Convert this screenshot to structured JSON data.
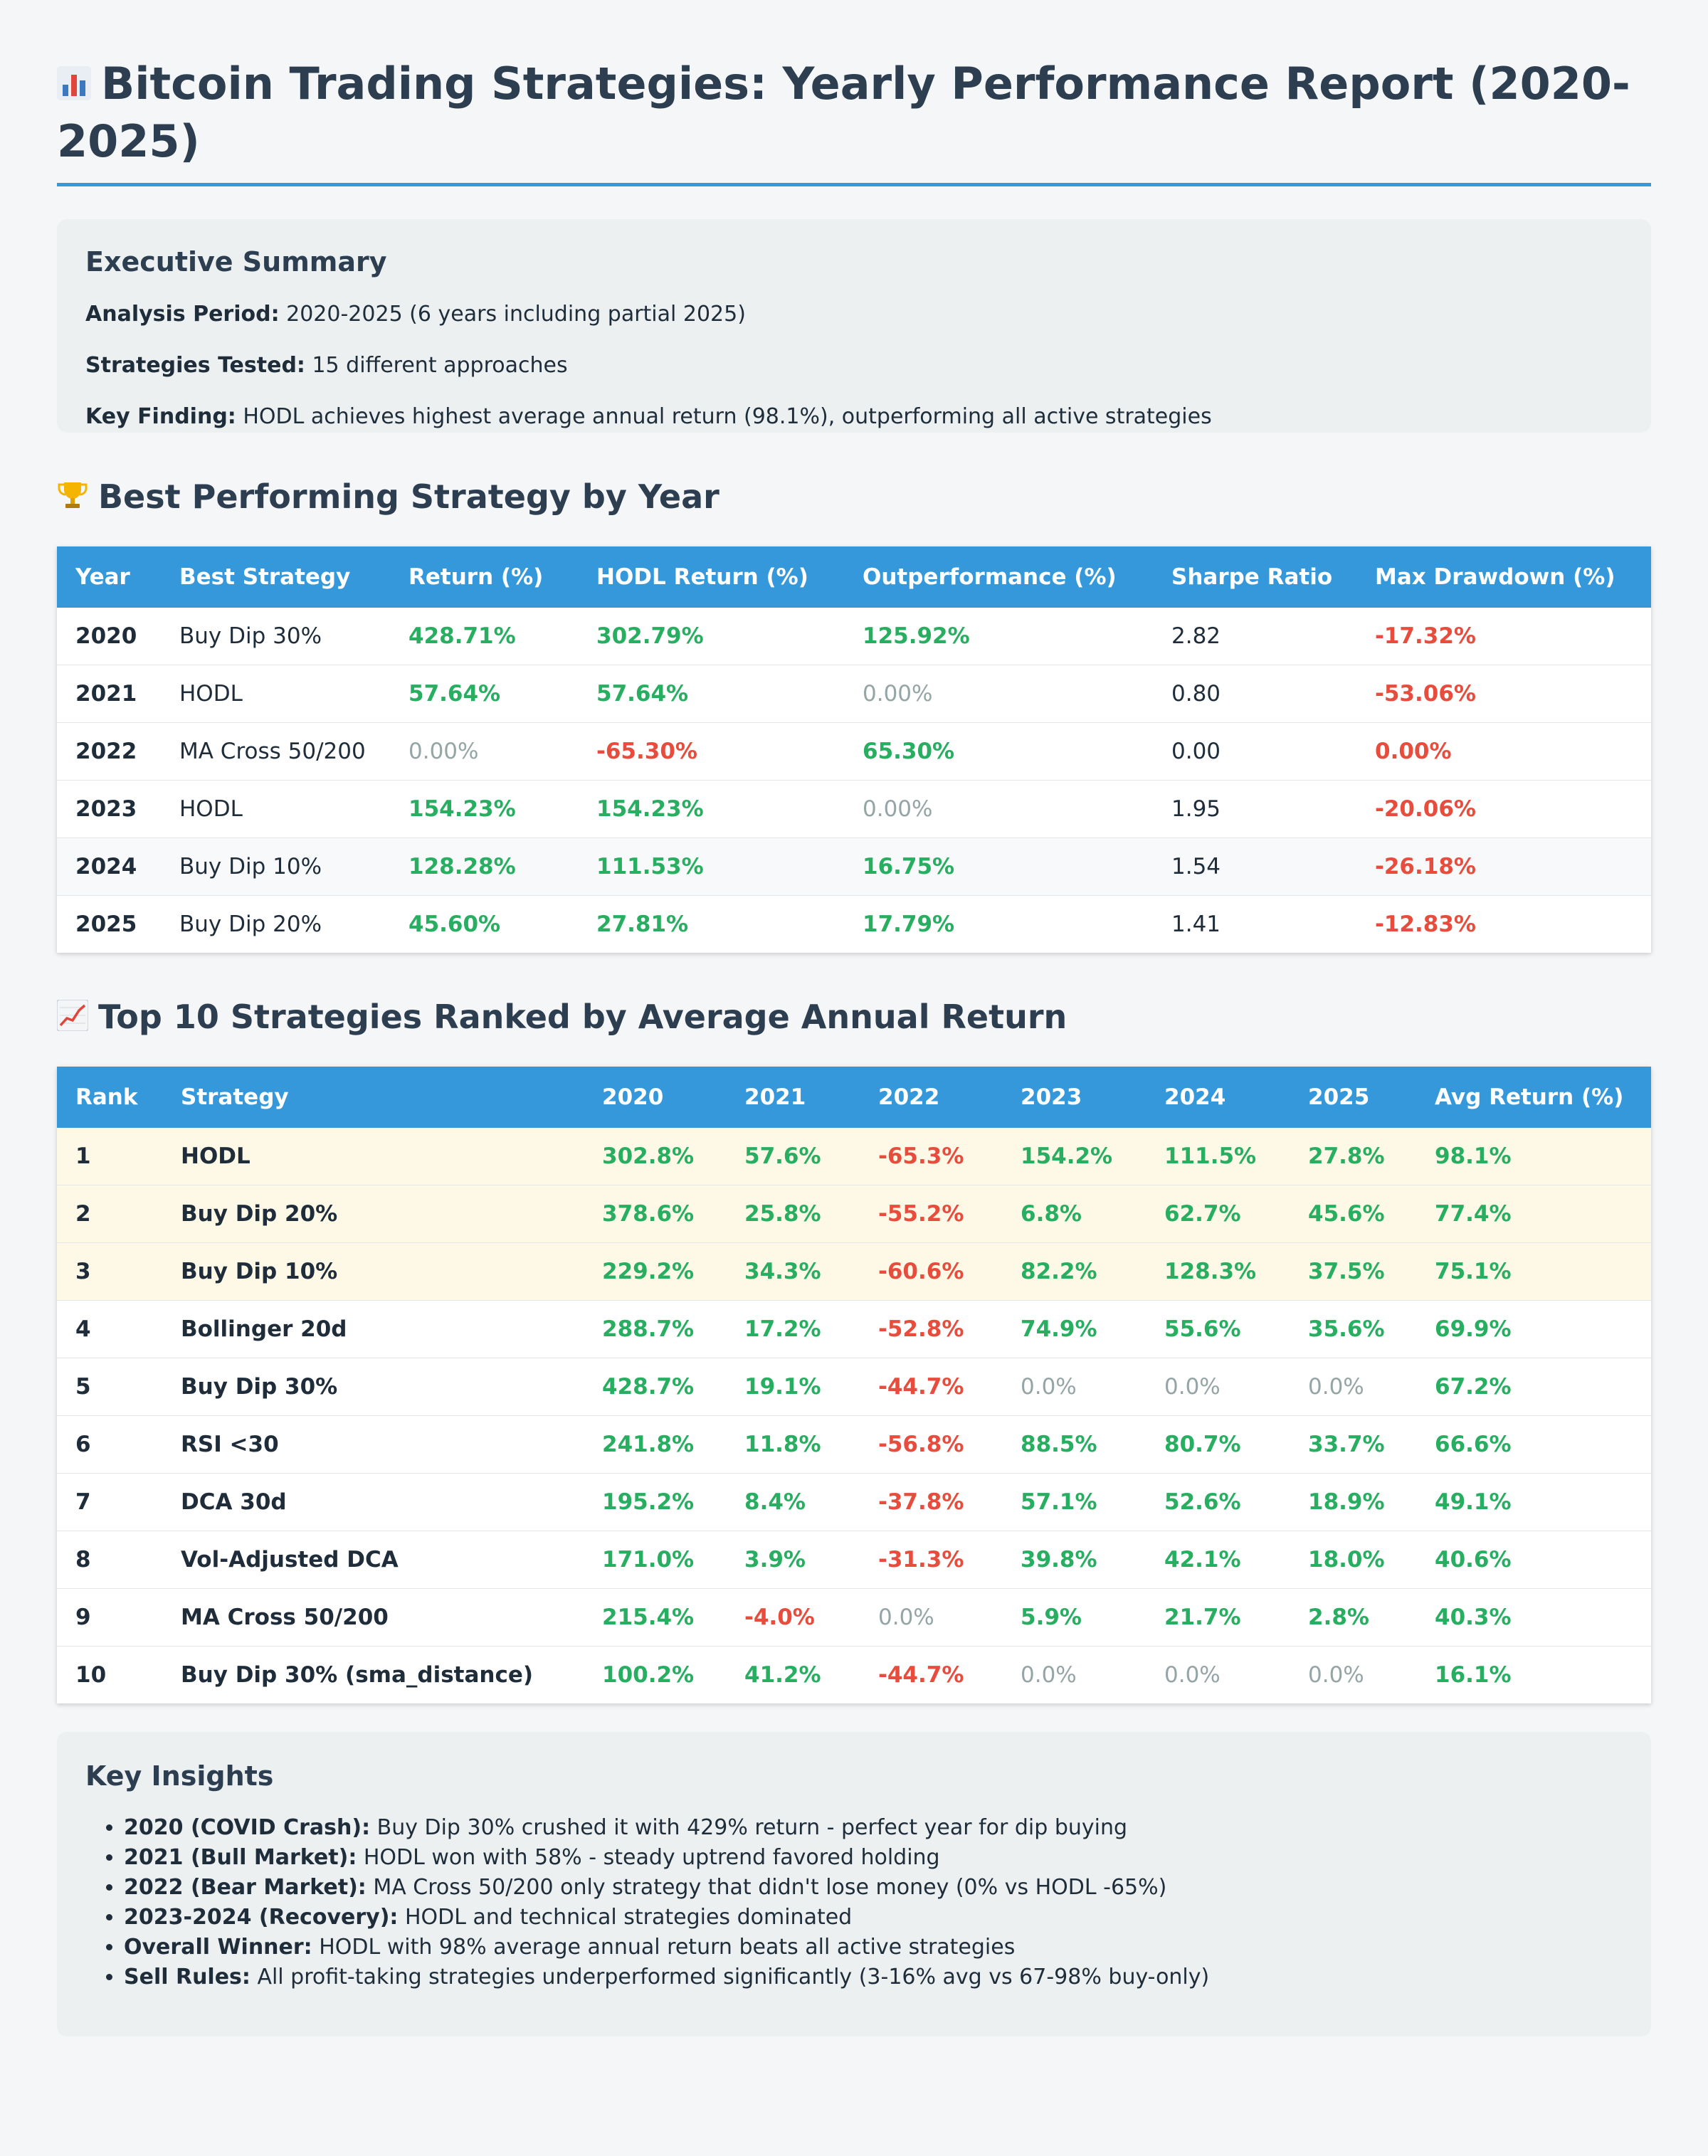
{
  "title": "Bitcoin Trading Strategies: Yearly Performance Report (2020-2025)",
  "summary": {
    "heading": "Executive Summary",
    "items": [
      {
        "label": "Analysis Period:",
        "text": " 2020-2025 (6 years including partial 2025)"
      },
      {
        "label": "Strategies Tested:",
        "text": " 15 different approaches"
      },
      {
        "label": "Key Finding:",
        "text": " HODL achieves highest average annual return (98.1%), outperforming all active strategies"
      }
    ]
  },
  "best_by_year": {
    "heading": "Best Performing Strategy by Year",
    "columns": [
      "Year",
      "Best Strategy",
      "Return (%)",
      "HODL Return (%)",
      "Outperformance (%)",
      "Sharpe Ratio",
      "Max Drawdown (%)"
    ],
    "rows": [
      [
        "2020",
        "Buy Dip 30%",
        "428.71%",
        "302.79%",
        "125.92%",
        "2.82",
        "-17.32%"
      ],
      [
        "2021",
        "HODL",
        "57.64%",
        "57.64%",
        "0.00%",
        "0.80",
        "-53.06%"
      ],
      [
        "2022",
        "MA Cross 50/200",
        "0.00%",
        "-65.30%",
        "65.30%",
        "0.00",
        "0.00%"
      ],
      [
        "2023",
        "HODL",
        "154.23%",
        "154.23%",
        "0.00%",
        "1.95",
        "-20.06%"
      ],
      [
        "2024",
        "Buy Dip 10%",
        "128.28%",
        "111.53%",
        "16.75%",
        "1.54",
        "-26.18%"
      ],
      [
        "2025",
        "Buy Dip 20%",
        "45.60%",
        "27.81%",
        "17.79%",
        "1.41",
        "-12.83%"
      ]
    ]
  },
  "top10": {
    "heading": "Top 10 Strategies Ranked by Average Annual Return",
    "columns": [
      "Rank",
      "Strategy",
      "2020",
      "2021",
      "2022",
      "2023",
      "2024",
      "2025",
      "Avg Return (%)"
    ],
    "rows": [
      [
        "1",
        "HODL",
        "302.8%",
        "57.6%",
        "-65.3%",
        "154.2%",
        "111.5%",
        "27.8%",
        "98.1%"
      ],
      [
        "2",
        "Buy Dip 20%",
        "378.6%",
        "25.8%",
        "-55.2%",
        "6.8%",
        "62.7%",
        "45.6%",
        "77.4%"
      ],
      [
        "3",
        "Buy Dip 10%",
        "229.2%",
        "34.3%",
        "-60.6%",
        "82.2%",
        "128.3%",
        "37.5%",
        "75.1%"
      ],
      [
        "4",
        "Bollinger 20d",
        "288.7%",
        "17.2%",
        "-52.8%",
        "74.9%",
        "55.6%",
        "35.6%",
        "69.9%"
      ],
      [
        "5",
        "Buy Dip 30%",
        "428.7%",
        "19.1%",
        "-44.7%",
        "0.0%",
        "0.0%",
        "0.0%",
        "67.2%"
      ],
      [
        "6",
        "RSI <30",
        "241.8%",
        "11.8%",
        "-56.8%",
        "88.5%",
        "80.7%",
        "33.7%",
        "66.6%"
      ],
      [
        "7",
        "DCA 30d",
        "195.2%",
        "8.4%",
        "-37.8%",
        "57.1%",
        "52.6%",
        "18.9%",
        "49.1%"
      ],
      [
        "8",
        "Vol-Adjusted DCA",
        "171.0%",
        "3.9%",
        "-31.3%",
        "39.8%",
        "42.1%",
        "18.0%",
        "40.6%"
      ],
      [
        "9",
        "MA Cross 50/200",
        "215.4%",
        "-4.0%",
        "0.0%",
        "5.9%",
        "21.7%",
        "2.8%",
        "40.3%"
      ],
      [
        "10",
        "Buy Dip 30% (sma_distance)",
        "100.2%",
        "41.2%",
        "-44.7%",
        "0.0%",
        "0.0%",
        "0.0%",
        "16.1%"
      ]
    ]
  },
  "insights": {
    "heading": "Key Insights",
    "items": [
      {
        "label": "2020 (COVID Crash):",
        "text": " Buy Dip 30% crushed it with 429% return - perfect year for dip buying"
      },
      {
        "label": "2021 (Bull Market):",
        "text": " HODL won with 58% - steady uptrend favored holding"
      },
      {
        "label": "2022 (Bear Market):",
        "text": " MA Cross 50/200 only strategy that didn't lose money (0% vs HODL -65%)"
      },
      {
        "label": "2023-2024 (Recovery):",
        "text": " HODL and technical strategies dominated"
      },
      {
        "label": "Overall Winner:",
        "text": " HODL with 98% average annual return beats all active strategies"
      },
      {
        "label": "Sell Rules:",
        "text": " All profit-taking strategies underperformed significantly (3-16% avg vs 67-98% buy-only)"
      }
    ]
  },
  "colors": {
    "accent": "#3498db",
    "positive": "#27ae60",
    "negative": "#e74c3c",
    "zero": "#95a5a6",
    "top_row": "#fef9e7"
  },
  "icons": [
    "bar-chart-icon",
    "trophy-icon",
    "trend-chart-icon"
  ]
}
